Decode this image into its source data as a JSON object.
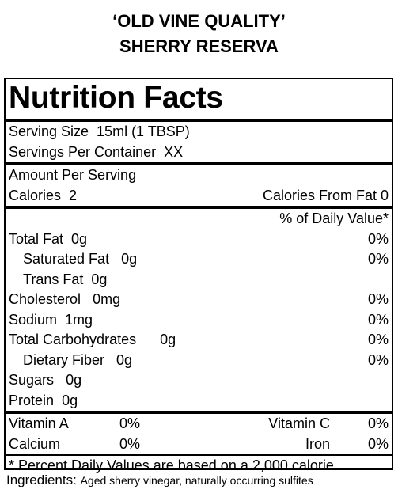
{
  "header": {
    "line1": "‘OLD VINE QUALITY’",
    "line2": "SHERRY RESERVA"
  },
  "label": {
    "title": "Nutrition Facts",
    "serving_size": "Serving Size  15ml (1 TBSP)",
    "servings_per_container": "Servings Per Container  XX",
    "amount_per_serving": "Amount Per Serving",
    "calories": {
      "label": "Calories",
      "value": "2"
    },
    "calories_from_fat": "Calories From Fat 0",
    "daily_value_header": "% of Daily Value*",
    "nutrients": [
      {
        "name": "Total Fat",
        "amount": "0g",
        "dv": "0%"
      },
      {
        "name": "Saturated Fat",
        "amount": "0g",
        "dv": "0%"
      },
      {
        "name": "Trans Fat",
        "amount": "0g"
      },
      {
        "name": "Cholesterol",
        "amount": "0mg",
        "dv": "0%"
      },
      {
        "name": "Sodium",
        "amount": "1mg",
        "dv": "0%"
      },
      {
        "name": "Total Carbohydrates",
        "amount": "0g",
        "dv": "0%"
      },
      {
        "name": "Dietary Fiber",
        "amount": "0g",
        "dv": "0%"
      },
      {
        "name": "Sugars",
        "amount": "0g"
      },
      {
        "name": "Protein",
        "amount": "0g"
      }
    ],
    "vitamins": [
      {
        "name": "Vitamin A",
        "dv": "0%"
      },
      {
        "name": "Vitamin C",
        "dv": "0%"
      },
      {
        "name": "Calcium",
        "dv": "0%"
      },
      {
        "name": "Iron",
        "dv": "0%"
      }
    ],
    "footnote": "* Percent Daily Values are based on a 2,000 calorie"
  },
  "ingredients": {
    "label": "Ingredients:",
    "text": "Aged sherry vinegar, naturally occurring sulfites"
  }
}
